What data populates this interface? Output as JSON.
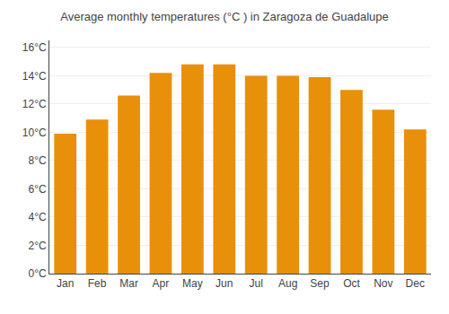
{
  "chart_data": {
    "type": "bar",
    "title": "Average monthly temperatures (°C ) in Zaragoza de Guadalupe",
    "categories": [
      "Jan",
      "Feb",
      "Mar",
      "Apr",
      "May",
      "Jun",
      "Jul",
      "Aug",
      "Sep",
      "Oct",
      "Nov",
      "Dec"
    ],
    "values": [
      9.9,
      10.9,
      12.6,
      14.2,
      14.8,
      14.8,
      14.0,
      14.0,
      13.9,
      13.0,
      11.6,
      10.2
    ],
    "color": "#E8900A",
    "ylim": [
      0,
      16.5
    ],
    "yticks": [
      {
        "value": 0,
        "label": "0°C"
      },
      {
        "value": 2,
        "label": "2°C"
      },
      {
        "value": 4,
        "label": "4°C"
      },
      {
        "value": 6,
        "label": "6°C"
      },
      {
        "value": 8,
        "label": "8°C"
      },
      {
        "value": 10,
        "label": "10°C"
      },
      {
        "value": 12,
        "label": "12°C"
      },
      {
        "value": 14,
        "label": "14°C"
      },
      {
        "value": 16,
        "label": "16°C"
      }
    ],
    "grid": true
  }
}
